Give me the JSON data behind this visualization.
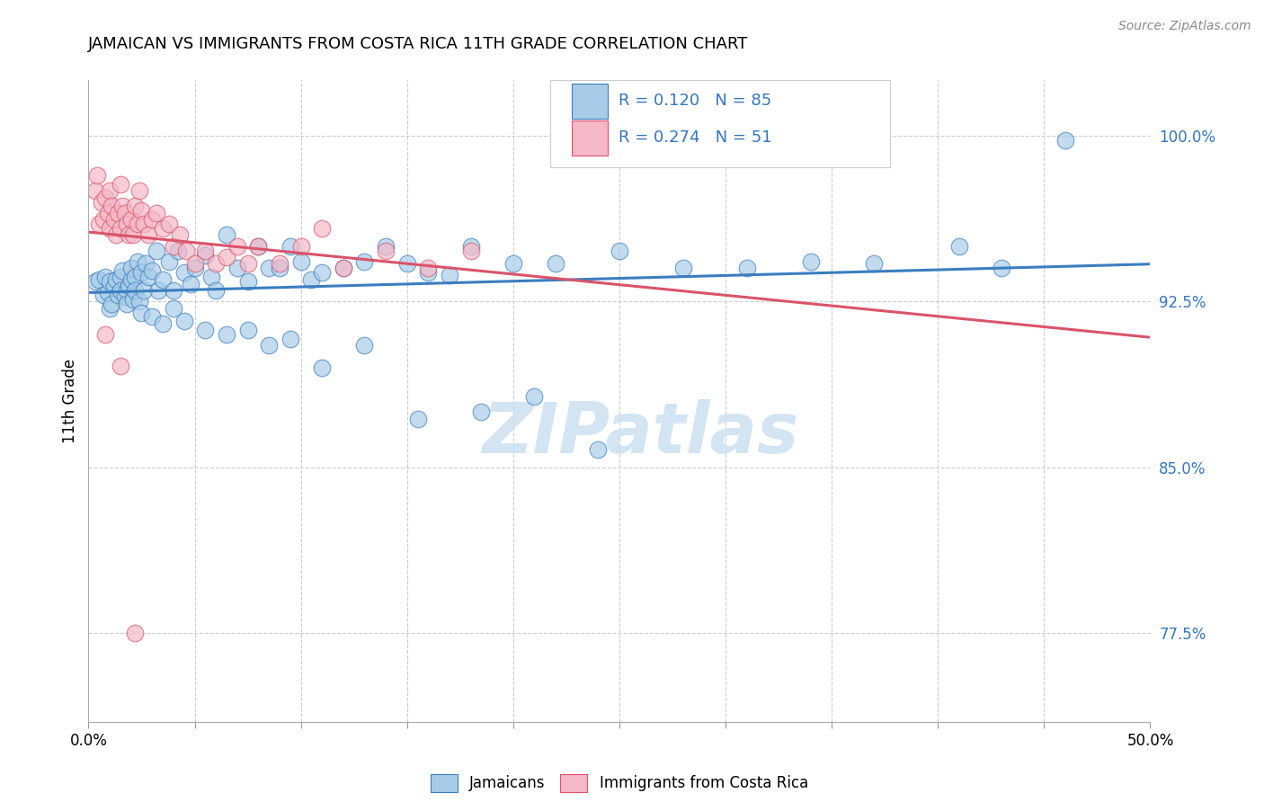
{
  "title": "JAMAICAN VS IMMIGRANTS FROM COSTA RICA 11TH GRADE CORRELATION CHART",
  "source_text": "Source: ZipAtlas.com",
  "ylabel": "11th Grade",
  "ytick_labels": [
    "77.5%",
    "85.0%",
    "92.5%",
    "100.0%"
  ],
  "ytick_values": [
    0.775,
    0.85,
    0.925,
    1.0
  ],
  "xmin": 0.0,
  "xmax": 0.5,
  "ymin": 0.735,
  "ymax": 1.025,
  "legend_r1": "R = 0.120",
  "legend_n1": "N = 85",
  "legend_r2": "R = 0.274",
  "legend_n2": "N = 51",
  "legend_label1": "Jamaicans",
  "legend_label2": "Immigrants from Costa Rica",
  "blue_color": "#a8cce8",
  "pink_color": "#f4b8c8",
  "blue_line_color": "#3b7dbf",
  "pink_line_color": "#d9546a",
  "legend_text_color": "#3575c0",
  "right_axis_color": "#3575c0",
  "watermark_color": "#cce0f0",
  "watermark_text": "ZIPatlas",
  "xticks": [
    0.0,
    0.05,
    0.1,
    0.15,
    0.2,
    0.25,
    0.3,
    0.35,
    0.4,
    0.45,
    0.5
  ],
  "xtick_labels": [
    "0.0%",
    "",
    "",
    "",
    "",
    "",
    "",
    "",
    "",
    "",
    "50.0%"
  ],
  "scatter_blue_x": [
    0.003,
    0.005,
    0.007,
    0.008,
    0.009,
    0.01,
    0.01,
    0.011,
    0.012,
    0.013,
    0.014,
    0.015,
    0.015,
    0.016,
    0.017,
    0.018,
    0.018,
    0.019,
    0.02,
    0.02,
    0.021,
    0.022,
    0.022,
    0.023,
    0.024,
    0.025,
    0.026,
    0.027,
    0.028,
    0.03,
    0.032,
    0.033,
    0.035,
    0.038,
    0.04,
    0.042,
    0.045,
    0.048,
    0.05,
    0.055,
    0.058,
    0.06,
    0.065,
    0.07,
    0.075,
    0.08,
    0.085,
    0.09,
    0.095,
    0.1,
    0.105,
    0.11,
    0.12,
    0.13,
    0.14,
    0.15,
    0.16,
    0.17,
    0.18,
    0.2,
    0.22,
    0.25,
    0.28,
    0.31,
    0.34,
    0.37,
    0.41,
    0.43,
    0.46,
    0.025,
    0.03,
    0.035,
    0.04,
    0.045,
    0.055,
    0.065,
    0.075,
    0.085,
    0.095,
    0.11,
    0.13,
    0.155,
    0.185,
    0.21,
    0.24
  ],
  "scatter_blue_y": [
    0.934,
    0.935,
    0.928,
    0.936,
    0.929,
    0.934,
    0.922,
    0.924,
    0.932,
    0.935,
    0.928,
    0.936,
    0.93,
    0.939,
    0.927,
    0.93,
    0.924,
    0.932,
    0.935,
    0.94,
    0.926,
    0.936,
    0.93,
    0.943,
    0.925,
    0.938,
    0.93,
    0.942,
    0.936,
    0.939,
    0.948,
    0.93,
    0.935,
    0.943,
    0.93,
    0.948,
    0.938,
    0.933,
    0.94,
    0.946,
    0.936,
    0.93,
    0.955,
    0.94,
    0.934,
    0.95,
    0.94,
    0.94,
    0.95,
    0.943,
    0.935,
    0.938,
    0.94,
    0.943,
    0.95,
    0.942,
    0.938,
    0.937,
    0.95,
    0.942,
    0.942,
    0.948,
    0.94,
    0.94,
    0.943,
    0.942,
    0.95,
    0.94,
    0.998,
    0.92,
    0.918,
    0.915,
    0.922,
    0.916,
    0.912,
    0.91,
    0.912,
    0.905,
    0.908,
    0.895,
    0.905,
    0.872,
    0.875,
    0.882,
    0.858
  ],
  "scatter_pink_x": [
    0.003,
    0.004,
    0.005,
    0.006,
    0.007,
    0.008,
    0.009,
    0.01,
    0.01,
    0.011,
    0.012,
    0.013,
    0.014,
    0.015,
    0.015,
    0.016,
    0.017,
    0.018,
    0.019,
    0.02,
    0.021,
    0.022,
    0.023,
    0.024,
    0.025,
    0.026,
    0.028,
    0.03,
    0.032,
    0.035,
    0.038,
    0.04,
    0.043,
    0.046,
    0.05,
    0.055,
    0.06,
    0.065,
    0.07,
    0.075,
    0.08,
    0.09,
    0.1,
    0.11,
    0.12,
    0.14,
    0.16,
    0.18,
    0.008,
    0.015,
    0.022
  ],
  "scatter_pink_y": [
    0.975,
    0.982,
    0.96,
    0.97,
    0.962,
    0.972,
    0.965,
    0.975,
    0.958,
    0.968,
    0.962,
    0.955,
    0.965,
    0.978,
    0.958,
    0.968,
    0.965,
    0.96,
    0.955,
    0.962,
    0.955,
    0.968,
    0.96,
    0.975,
    0.966,
    0.96,
    0.955,
    0.962,
    0.965,
    0.958,
    0.96,
    0.95,
    0.955,
    0.948,
    0.942,
    0.948,
    0.942,
    0.945,
    0.95,
    0.942,
    0.95,
    0.942,
    0.95,
    0.958,
    0.94,
    0.948,
    0.94,
    0.948,
    0.91,
    0.896,
    0.775
  ]
}
